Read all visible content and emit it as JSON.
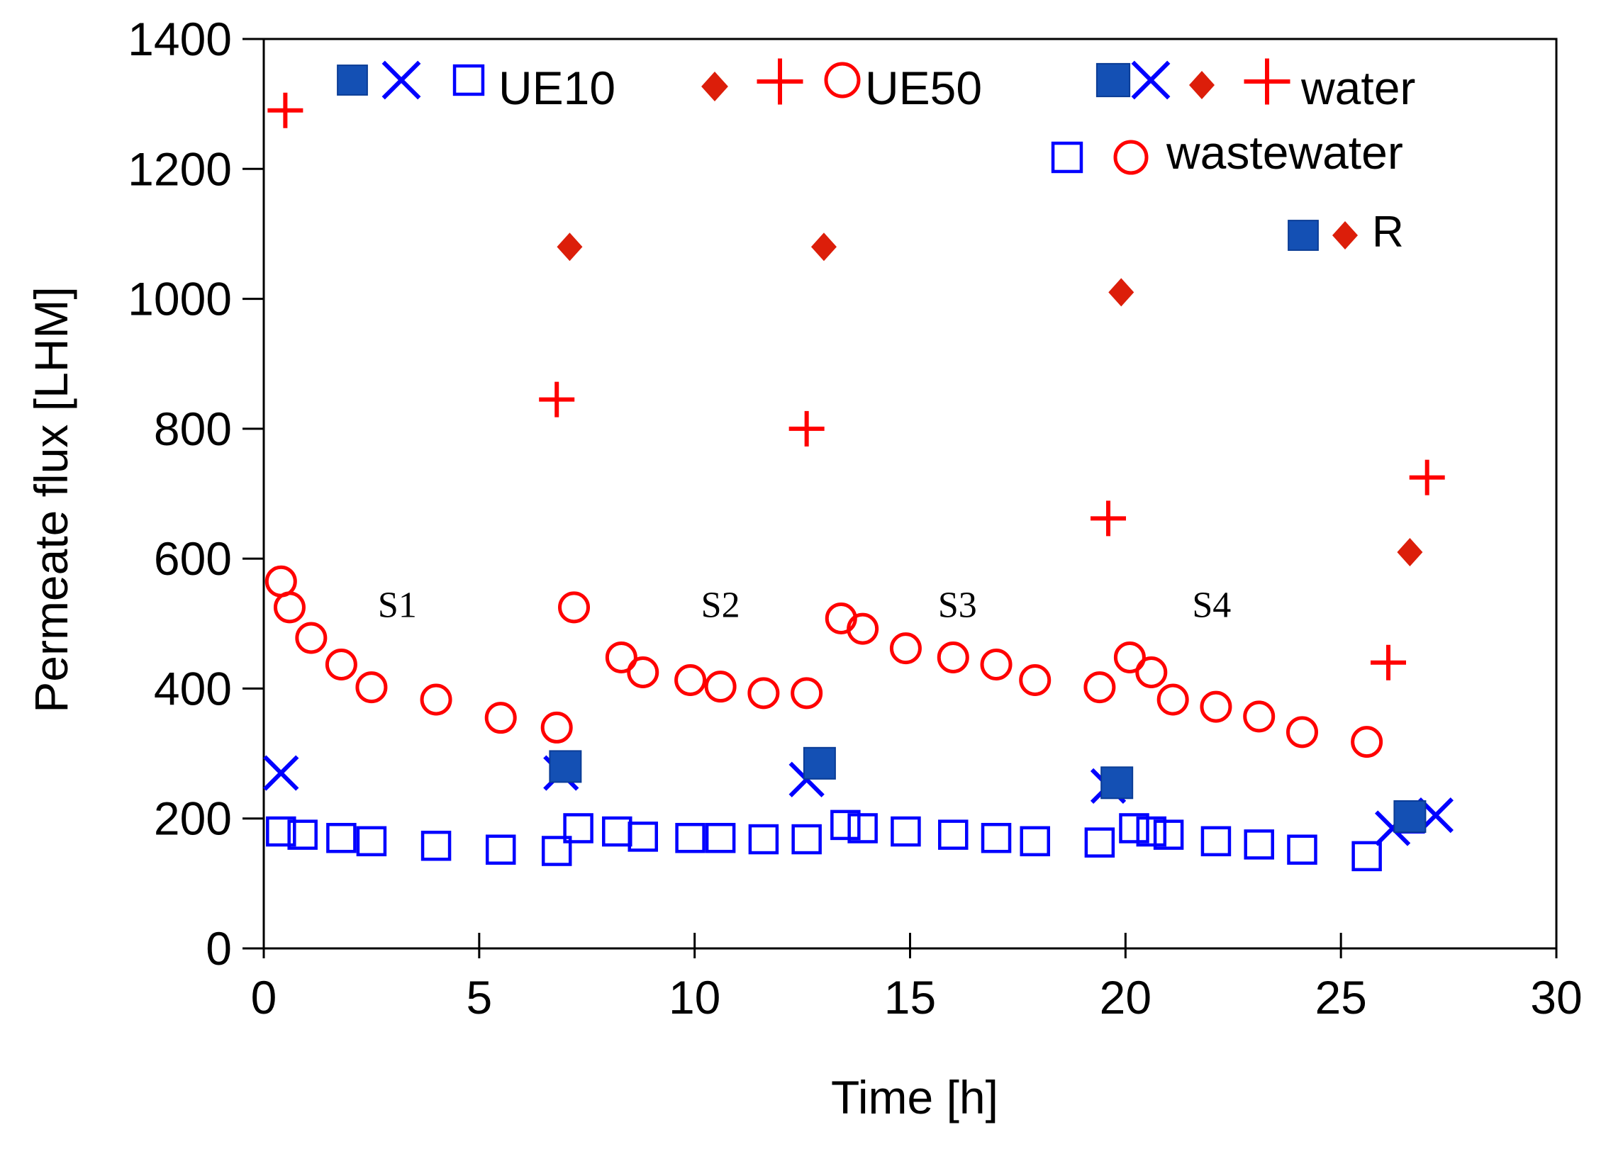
{
  "colors": {
    "blue": "#0000ff",
    "blue_fill": "#1450b4",
    "red": "#ff0000",
    "red_fill": "#dc1e0a",
    "axis": "#000000"
  },
  "chart_data": {
    "type": "scatter",
    "title": "",
    "xlabel": "Time [h]",
    "ylabel": "Permeate flux [LHM]",
    "xlim": [
      0,
      30
    ],
    "ylim": [
      0,
      1400
    ],
    "xticks": [
      0,
      5,
      10,
      15,
      20,
      25,
      30
    ],
    "yticks": [
      0,
      200,
      400,
      600,
      800,
      1000,
      1200,
      1400
    ],
    "grid": false,
    "legend_position": "top",
    "legend": {
      "row1_label_a": "UE10",
      "row1_label_b": "UE50",
      "row1_label_c": "water",
      "row2_label": "wastewater",
      "row3_label": "R"
    },
    "annotations": [
      {
        "text": "S1",
        "x": 3.1,
        "y": 510
      },
      {
        "text": "S2",
        "x": 10.6,
        "y": 510
      },
      {
        "text": "S3",
        "x": 16.1,
        "y": 510
      },
      {
        "text": "S4",
        "x": 22.0,
        "y": 510
      }
    ],
    "series": [
      {
        "name": "UE10 water",
        "marker": "x",
        "color": "#0000ff",
        "points": [
          [
            0.4,
            270
          ],
          [
            6.9,
            270
          ],
          [
            12.6,
            260
          ],
          [
            19.6,
            250
          ],
          [
            26.2,
            185
          ],
          [
            27.2,
            205
          ]
        ]
      },
      {
        "name": "UE10 wastewater",
        "marker": "square-open",
        "color": "#0000ff",
        "points": [
          [
            0.4,
            180
          ],
          [
            0.9,
            175
          ],
          [
            1.8,
            170
          ],
          [
            2.5,
            165
          ],
          [
            4.0,
            158
          ],
          [
            5.5,
            152
          ],
          [
            6.8,
            150
          ],
          [
            7.3,
            185
          ],
          [
            8.2,
            180
          ],
          [
            8.8,
            172
          ],
          [
            9.9,
            170
          ],
          [
            10.6,
            170
          ],
          [
            11.6,
            168
          ],
          [
            12.6,
            168
          ],
          [
            13.5,
            190
          ],
          [
            13.9,
            185
          ],
          [
            14.9,
            180
          ],
          [
            16.0,
            175
          ],
          [
            17.0,
            170
          ],
          [
            17.9,
            165
          ],
          [
            19.4,
            163
          ],
          [
            20.2,
            185
          ],
          [
            20.6,
            180
          ],
          [
            21.0,
            175
          ],
          [
            22.1,
            165
          ],
          [
            23.1,
            160
          ],
          [
            24.1,
            152
          ],
          [
            25.6,
            142
          ],
          [
            26.6,
            200
          ]
        ]
      },
      {
        "name": "UE10 R",
        "marker": "square-filled",
        "color": "#1450b4",
        "points": [
          [
            7.0,
            280
          ],
          [
            12.9,
            285
          ],
          [
            19.8,
            255
          ],
          [
            26.6,
            203
          ]
        ]
      },
      {
        "name": "UE50 water",
        "marker": "plus",
        "color": "#ff0000",
        "points": [
          [
            0.5,
            1290
          ],
          [
            6.8,
            845
          ],
          [
            12.6,
            800
          ],
          [
            19.6,
            662
          ],
          [
            26.1,
            440
          ],
          [
            27.0,
            725
          ]
        ]
      },
      {
        "name": "UE50 wastewater",
        "marker": "circle-open",
        "color": "#ff0000",
        "points": [
          [
            0.4,
            565
          ],
          [
            0.6,
            525
          ],
          [
            1.1,
            478
          ],
          [
            1.8,
            437
          ],
          [
            2.5,
            402
          ],
          [
            4.0,
            383
          ],
          [
            5.5,
            355
          ],
          [
            6.8,
            340
          ],
          [
            7.2,
            525
          ],
          [
            8.3,
            448
          ],
          [
            8.8,
            425
          ],
          [
            9.9,
            413
          ],
          [
            10.6,
            403
          ],
          [
            11.6,
            393
          ],
          [
            12.6,
            393
          ],
          [
            13.4,
            508
          ],
          [
            13.9,
            492
          ],
          [
            14.9,
            462
          ],
          [
            16.0,
            448
          ],
          [
            17.0,
            437
          ],
          [
            17.9,
            413
          ],
          [
            19.4,
            402
          ],
          [
            20.1,
            448
          ],
          [
            20.6,
            425
          ],
          [
            21.1,
            383
          ],
          [
            22.1,
            372
          ],
          [
            23.1,
            357
          ],
          [
            24.1,
            333
          ],
          [
            25.6,
            318
          ]
        ]
      },
      {
        "name": "UE50 R",
        "marker": "diamond",
        "color": "#dc1e0a",
        "points": [
          [
            7.1,
            1080
          ],
          [
            13.0,
            1080
          ],
          [
            19.9,
            1010
          ],
          [
            26.6,
            610
          ]
        ]
      }
    ]
  }
}
